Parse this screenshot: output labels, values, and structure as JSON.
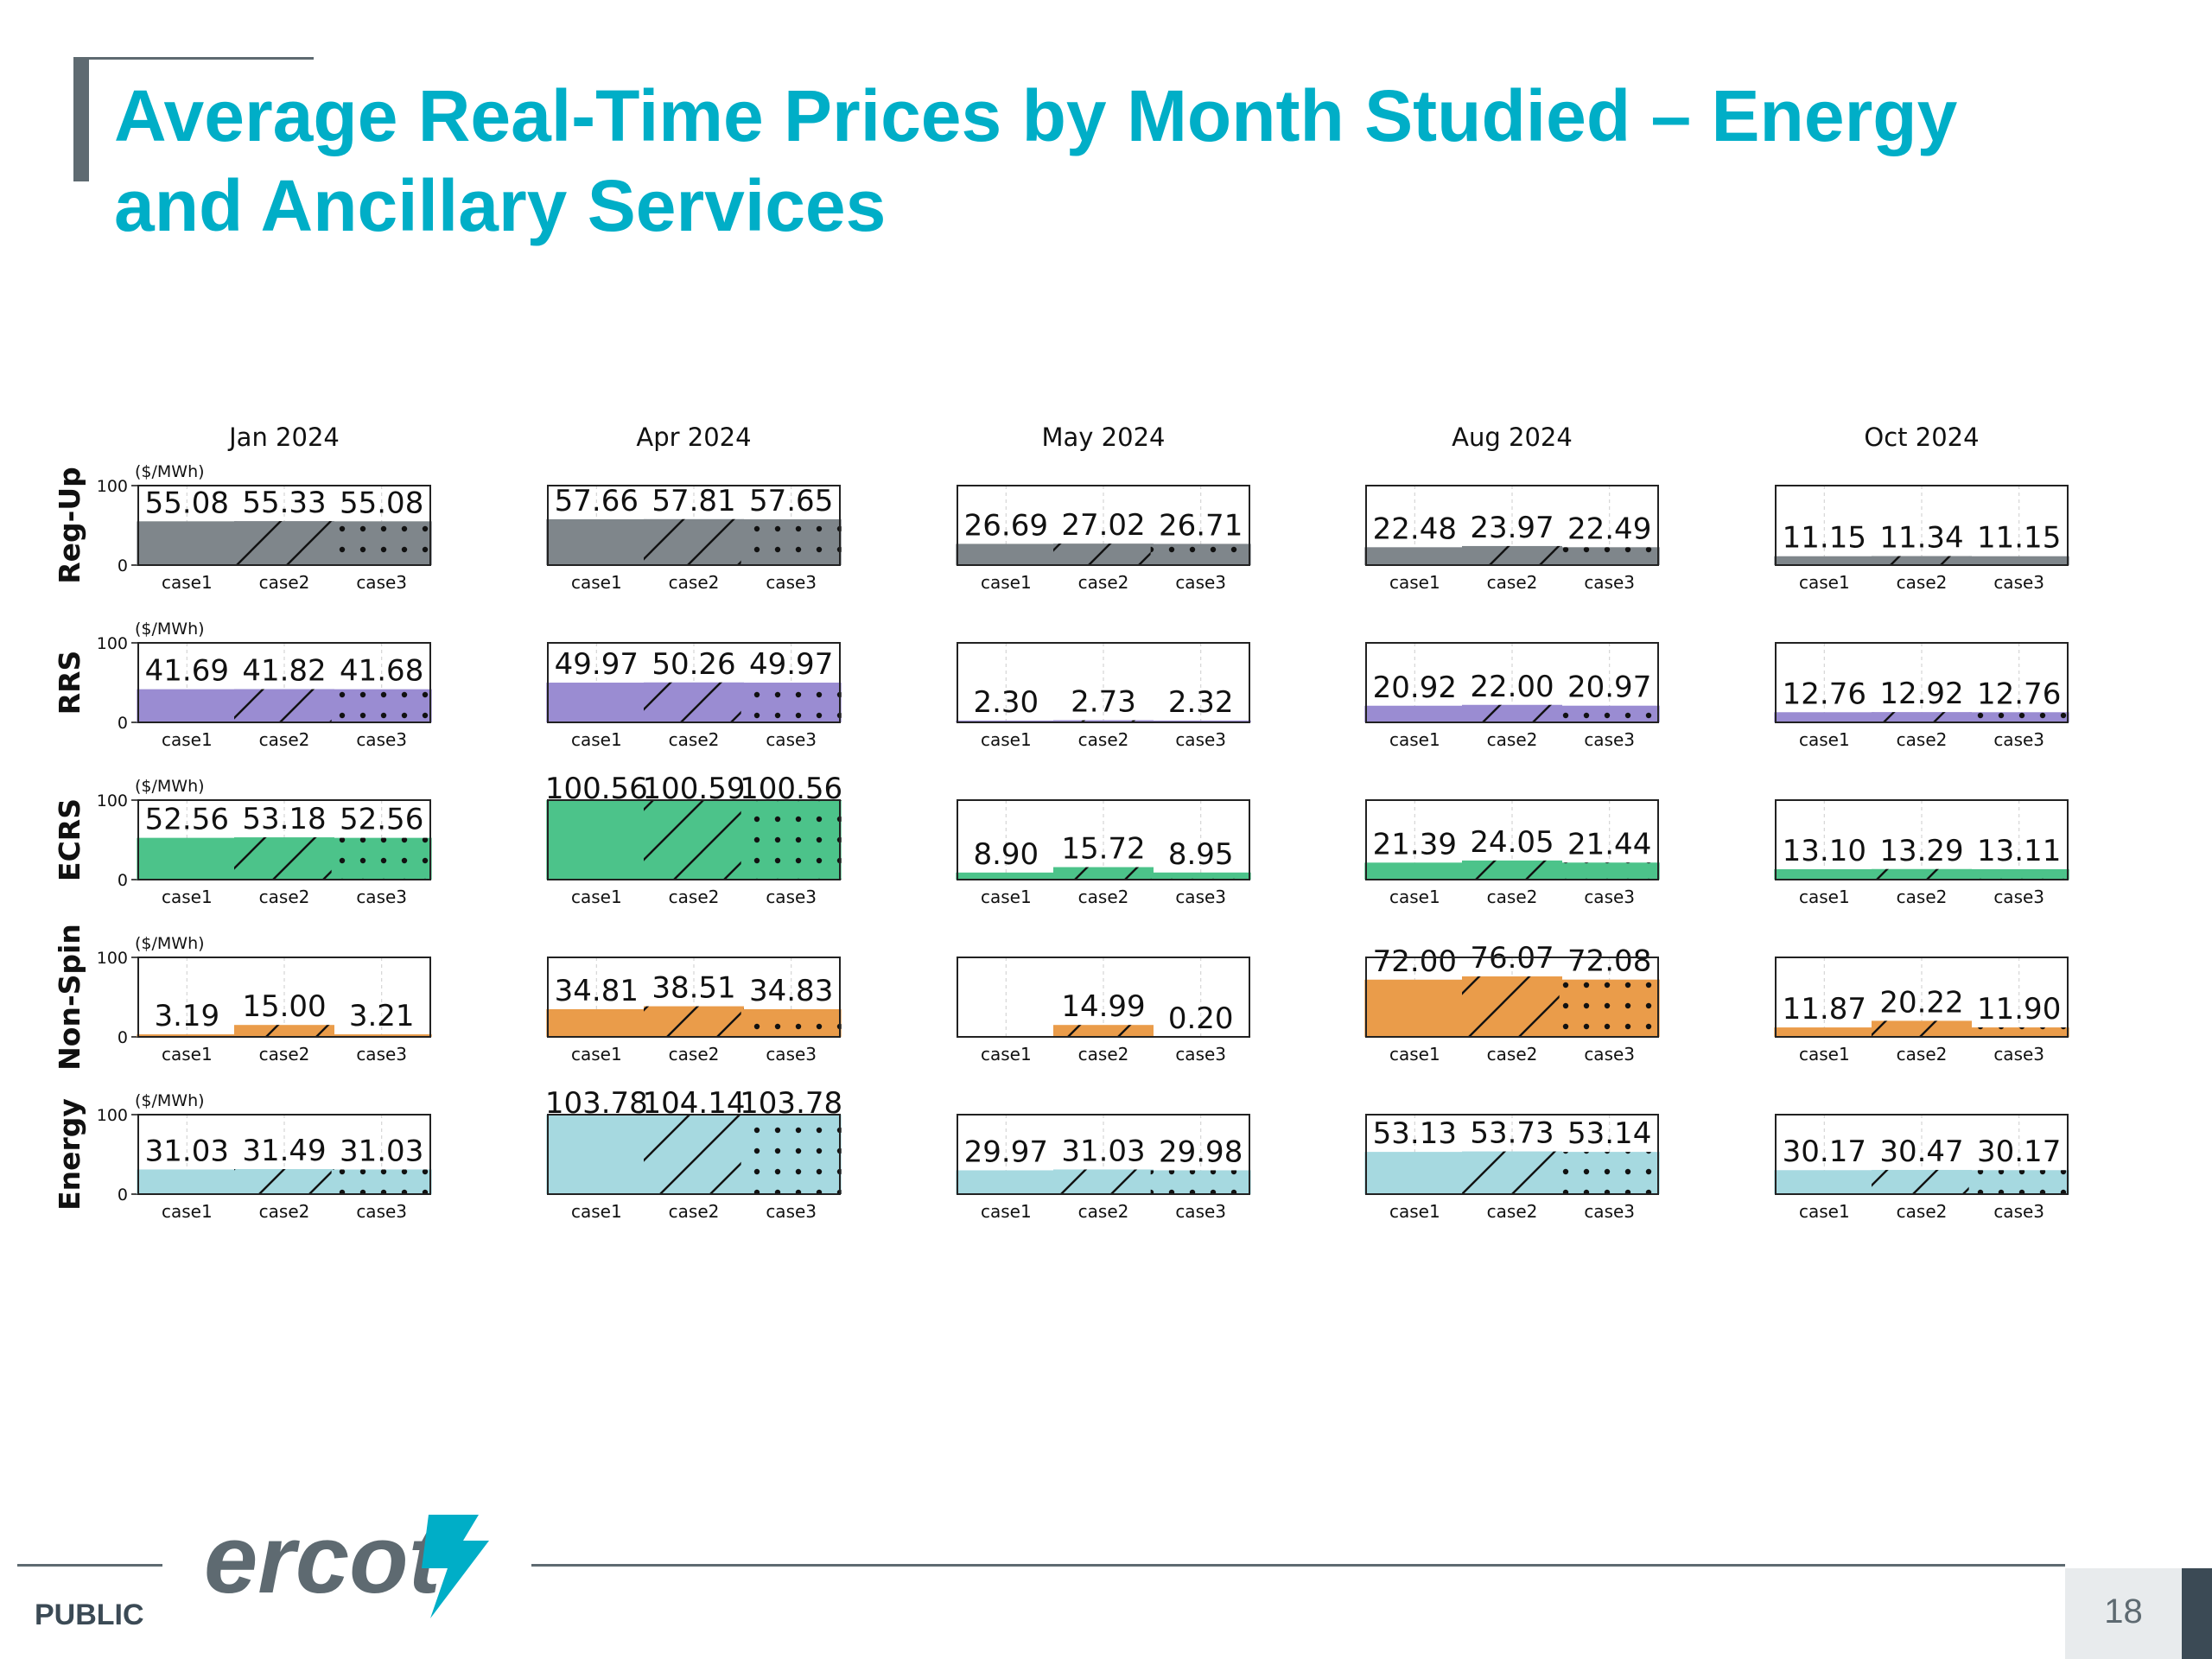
{
  "slide": {
    "title": "Average Real-Time Prices by Month Studied – Energy and Ancillary Services",
    "footer_label": "PUBLIC",
    "logo_text": "ercot",
    "page_number": "18"
  },
  "colors": {
    "title": "#00aec7",
    "Reg-Up": "#7f868b",
    "RRS": "#9a8cd2",
    "ECRS": "#4cc38a",
    "Non-Spin": "#ea9c4a",
    "Energy": "#a6d9e0"
  },
  "chart_data": {
    "type": "bar",
    "unit_label": "($/MWh)",
    "months": [
      "Jan 2024",
      "Apr 2024",
      "May 2024",
      "Aug 2024",
      "Oct 2024"
    ],
    "services": [
      "Reg-Up",
      "RRS",
      "ECRS",
      "Non-Spin",
      "Energy"
    ],
    "categories": [
      "case1",
      "case2",
      "case3"
    ],
    "case_patterns": [
      "solid",
      "diagonal-hatch",
      "dots"
    ],
    "ylim": [
      0,
      100
    ],
    "yticks": [
      0,
      100
    ],
    "grid": true,
    "values": {
      "Reg-Up": [
        [
          55.08,
          55.33,
          55.08
        ],
        [
          57.66,
          57.81,
          57.65
        ],
        [
          26.69,
          27.02,
          26.71
        ],
        [
          22.48,
          23.97,
          22.49
        ],
        [
          11.15,
          11.34,
          11.15
        ]
      ],
      "RRS": [
        [
          41.69,
          41.82,
          41.68
        ],
        [
          49.97,
          50.26,
          49.97
        ],
        [
          2.3,
          2.73,
          2.32
        ],
        [
          20.92,
          22.0,
          20.97
        ],
        [
          12.76,
          12.92,
          12.76
        ]
      ],
      "ECRS": [
        [
          52.56,
          53.18,
          52.56
        ],
        [
          100.56,
          100.59,
          100.56
        ],
        [
          8.9,
          15.72,
          8.95
        ],
        [
          21.39,
          24.05,
          21.44
        ],
        [
          13.1,
          13.29,
          13.11
        ]
      ],
      "Non-Spin": [
        [
          3.19,
          15.0,
          3.21
        ],
        [
          34.81,
          38.51,
          34.83
        ],
        [
          null,
          14.99,
          0.2
        ],
        [
          72.0,
          76.07,
          72.08
        ],
        [
          11.87,
          20.22,
          11.9
        ]
      ],
      "Energy": [
        [
          31.03,
          31.49,
          31.03
        ],
        [
          103.78,
          104.14,
          103.78
        ],
        [
          29.97,
          31.03,
          29.98
        ],
        [
          53.13,
          53.73,
          53.14
        ],
        [
          30.17,
          30.47,
          30.17
        ]
      ]
    }
  }
}
